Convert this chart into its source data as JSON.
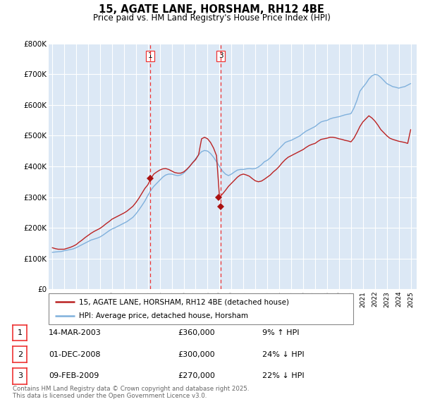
{
  "title": "15, AGATE LANE, HORSHAM, RH12 4BE",
  "subtitle": "Price paid vs. HM Land Registry's House Price Index (HPI)",
  "title_fontsize": 10.5,
  "subtitle_fontsize": 8.5,
  "background_color": "#ffffff",
  "plot_bg_color": "#dce8f5",
  "grid_color": "#ffffff",
  "hpi_line_color": "#7fb0dc",
  "price_line_color": "#bb2222",
  "vline_color": "#ee3333",
  "marker_color": "#aa1111",
  "ylim": [
    0,
    800000
  ],
  "yticks": [
    0,
    100000,
    200000,
    300000,
    400000,
    500000,
    600000,
    700000,
    800000
  ],
  "ytick_labels": [
    "£0",
    "£100K",
    "£200K",
    "£300K",
    "£400K",
    "£500K",
    "£600K",
    "£700K",
    "£800K"
  ],
  "xlim_start": 1994.7,
  "xlim_end": 2025.5,
  "xtick_years": [
    1995,
    1996,
    1997,
    1998,
    1999,
    2000,
    2001,
    2002,
    2003,
    2004,
    2005,
    2006,
    2007,
    2008,
    2009,
    2010,
    2011,
    2012,
    2013,
    2014,
    2015,
    2016,
    2017,
    2018,
    2019,
    2020,
    2021,
    2022,
    2023,
    2024,
    2025
  ],
  "transaction_dates": [
    2003.19,
    2008.92,
    2009.11
  ],
  "transaction_prices": [
    360000,
    300000,
    270000
  ],
  "transaction_labels": [
    "1",
    "2",
    "3"
  ],
  "vline_dates": [
    2003.19,
    2009.11
  ],
  "vline_labels": [
    "1",
    "3"
  ],
  "legend_line1": "15, AGATE LANE, HORSHAM, RH12 4BE (detached house)",
  "legend_line2": "HPI: Average price, detached house, Horsham",
  "table_rows": [
    {
      "num": "1",
      "date": "14-MAR-2003",
      "price": "£360,000",
      "hpi": "9% ↑ HPI"
    },
    {
      "num": "2",
      "date": "01-DEC-2008",
      "price": "£300,000",
      "hpi": "24% ↓ HPI"
    },
    {
      "num": "3",
      "date": "09-FEB-2009",
      "price": "£270,000",
      "hpi": "22% ↓ HPI"
    }
  ],
  "footnote_line1": "Contains HM Land Registry data © Crown copyright and database right 2025.",
  "footnote_line2": "This data is licensed under the Open Government Licence v3.0.",
  "hpi_data_x": [
    1995.0,
    1995.25,
    1995.5,
    1995.75,
    1996.0,
    1996.25,
    1996.5,
    1996.75,
    1997.0,
    1997.25,
    1997.5,
    1997.75,
    1998.0,
    1998.25,
    1998.5,
    1998.75,
    1999.0,
    1999.25,
    1999.5,
    1999.75,
    2000.0,
    2000.25,
    2000.5,
    2000.75,
    2001.0,
    2001.25,
    2001.5,
    2001.75,
    2002.0,
    2002.25,
    2002.5,
    2002.75,
    2003.0,
    2003.25,
    2003.5,
    2003.75,
    2004.0,
    2004.25,
    2004.5,
    2004.75,
    2005.0,
    2005.25,
    2005.5,
    2005.75,
    2006.0,
    2006.25,
    2006.5,
    2006.75,
    2007.0,
    2007.25,
    2007.5,
    2007.75,
    2008.0,
    2008.25,
    2008.5,
    2008.75,
    2009.0,
    2009.25,
    2009.5,
    2009.75,
    2010.0,
    2010.25,
    2010.5,
    2010.75,
    2011.0,
    2011.25,
    2011.5,
    2011.75,
    2012.0,
    2012.25,
    2012.5,
    2012.75,
    2013.0,
    2013.25,
    2013.5,
    2013.75,
    2014.0,
    2014.25,
    2014.5,
    2014.75,
    2015.0,
    2015.25,
    2015.5,
    2015.75,
    2016.0,
    2016.25,
    2016.5,
    2016.75,
    2017.0,
    2017.25,
    2017.5,
    2017.75,
    2018.0,
    2018.25,
    2018.5,
    2018.75,
    2019.0,
    2019.25,
    2019.5,
    2019.75,
    2020.0,
    2020.25,
    2020.5,
    2020.75,
    2021.0,
    2021.25,
    2021.5,
    2021.75,
    2022.0,
    2022.25,
    2022.5,
    2022.75,
    2023.0,
    2023.25,
    2023.5,
    2023.75,
    2024.0,
    2024.25,
    2024.5,
    2024.75,
    2025.0
  ],
  "hpi_data_y": [
    120000,
    121000,
    122000,
    122500,
    125000,
    127000,
    129000,
    131000,
    135000,
    140000,
    145000,
    150000,
    155000,
    160000,
    163000,
    166000,
    170000,
    176000,
    183000,
    190000,
    196000,
    200000,
    205000,
    210000,
    215000,
    220000,
    227000,
    234000,
    245000,
    258000,
    272000,
    287000,
    305000,
    322000,
    335000,
    345000,
    355000,
    365000,
    372000,
    375000,
    375000,
    372000,
    370000,
    372000,
    378000,
    388000,
    400000,
    412000,
    425000,
    438000,
    448000,
    452000,
    450000,
    442000,
    430000,
    415000,
    400000,
    385000,
    375000,
    370000,
    375000,
    382000,
    388000,
    390000,
    390000,
    392000,
    393000,
    392000,
    393000,
    398000,
    405000,
    415000,
    420000,
    428000,
    438000,
    448000,
    458000,
    468000,
    478000,
    482000,
    485000,
    490000,
    495000,
    500000,
    508000,
    515000,
    520000,
    525000,
    530000,
    538000,
    545000,
    548000,
    550000,
    555000,
    558000,
    560000,
    562000,
    565000,
    568000,
    570000,
    572000,
    590000,
    615000,
    645000,
    658000,
    670000,
    685000,
    695000,
    700000,
    698000,
    690000,
    680000,
    670000,
    665000,
    660000,
    658000,
    655000,
    658000,
    660000,
    665000,
    670000
  ],
  "price_data_x": [
    1995.0,
    1995.25,
    1995.5,
    1995.75,
    1996.0,
    1996.25,
    1996.5,
    1996.75,
    1997.0,
    1997.25,
    1997.5,
    1997.75,
    1998.0,
    1998.25,
    1998.5,
    1998.75,
    1999.0,
    1999.25,
    1999.5,
    1999.75,
    2000.0,
    2000.25,
    2000.5,
    2000.75,
    2001.0,
    2001.25,
    2001.5,
    2001.75,
    2002.0,
    2002.25,
    2002.5,
    2002.75,
    2003.0,
    2003.25,
    2003.5,
    2003.75,
    2004.0,
    2004.25,
    2004.5,
    2004.75,
    2005.0,
    2005.25,
    2005.5,
    2005.75,
    2006.0,
    2006.25,
    2006.5,
    2006.75,
    2007.0,
    2007.25,
    2007.5,
    2007.75,
    2008.0,
    2008.25,
    2008.5,
    2008.75,
    2009.0,
    2009.25,
    2009.5,
    2009.75,
    2010.0,
    2010.25,
    2010.5,
    2010.75,
    2011.0,
    2011.25,
    2011.5,
    2011.75,
    2012.0,
    2012.25,
    2012.5,
    2012.75,
    2013.0,
    2013.25,
    2013.5,
    2013.75,
    2014.0,
    2014.25,
    2014.5,
    2014.75,
    2015.0,
    2015.25,
    2015.5,
    2015.75,
    2016.0,
    2016.25,
    2016.5,
    2016.75,
    2017.0,
    2017.25,
    2017.5,
    2017.75,
    2018.0,
    2018.25,
    2018.5,
    2018.75,
    2019.0,
    2019.25,
    2019.5,
    2019.75,
    2020.0,
    2020.25,
    2020.5,
    2020.75,
    2021.0,
    2021.25,
    2021.5,
    2021.75,
    2022.0,
    2022.25,
    2022.5,
    2022.75,
    2023.0,
    2023.25,
    2023.5,
    2023.75,
    2024.0,
    2024.25,
    2024.5,
    2024.75,
    2025.0
  ],
  "price_data_y": [
    135000,
    132000,
    130000,
    130000,
    130000,
    133000,
    136000,
    140000,
    145000,
    153000,
    160000,
    168000,
    175000,
    182000,
    188000,
    193000,
    198000,
    205000,
    213000,
    220000,
    228000,
    233000,
    238000,
    243000,
    248000,
    254000,
    262000,
    270000,
    282000,
    296000,
    312000,
    328000,
    340000,
    360000,
    375000,
    382000,
    388000,
    392000,
    393000,
    390000,
    385000,
    380000,
    378000,
    378000,
    382000,
    390000,
    400000,
    412000,
    422000,
    438000,
    490000,
    495000,
    490000,
    478000,
    460000,
    435000,
    300000,
    310000,
    322000,
    335000,
    345000,
    355000,
    365000,
    372000,
    375000,
    372000,
    368000,
    360000,
    353000,
    350000,
    352000,
    358000,
    365000,
    372000,
    382000,
    390000,
    400000,
    412000,
    422000,
    430000,
    435000,
    440000,
    445000,
    450000,
    455000,
    462000,
    468000,
    472000,
    475000,
    482000,
    488000,
    490000,
    492000,
    495000,
    495000,
    493000,
    490000,
    488000,
    485000,
    483000,
    480000,
    492000,
    510000,
    530000,
    545000,
    555000,
    565000,
    558000,
    548000,
    535000,
    520000,
    510000,
    500000,
    492000,
    488000,
    485000,
    482000,
    480000,
    478000,
    475000,
    520000
  ]
}
